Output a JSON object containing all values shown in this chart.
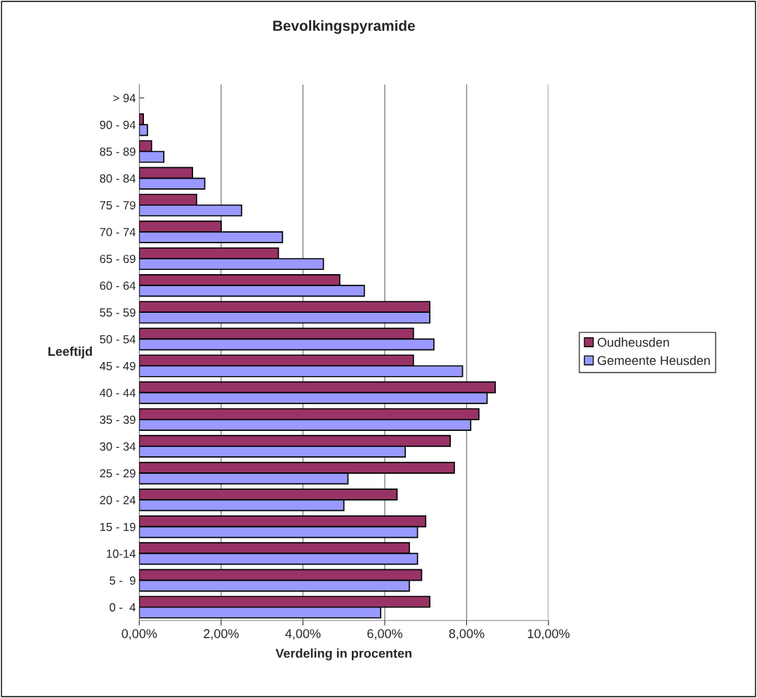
{
  "chart_data": {
    "type": "bar",
    "orientation": "horizontal",
    "title": "Bevolkingspyramide",
    "xlabel": "Verdeling in procenten",
    "ylabel": "Leeftijd",
    "categories": [
      "> 94",
      "90 - 94",
      "85 - 89",
      "80 - 84",
      "75 - 79",
      "70 - 74",
      "65 - 69",
      "60 - 64",
      "55 - 59",
      "50 - 54",
      "45 - 49",
      "40 - 44",
      "35 - 39",
      "30 - 34",
      "25 - 29",
      "20 - 24",
      "15 - 19",
      "10-14",
      "5 -  9",
      "0 -  4"
    ],
    "series": [
      {
        "name": "Oudheusden",
        "color": "#993366",
        "values": [
          0,
          0.1,
          0.3,
          1.3,
          1.4,
          2.0,
          3.4,
          4.9,
          7.1,
          6.7,
          6.7,
          8.7,
          8.3,
          7.6,
          7.7,
          6.3,
          7.0,
          6.6,
          6.9,
          7.1
        ]
      },
      {
        "name": "Gemeente Heusden",
        "color": "#9999ff",
        "values": [
          0,
          0.2,
          0.6,
          1.6,
          2.5,
          3.5,
          4.5,
          5.5,
          7.1,
          7.2,
          7.9,
          8.5,
          8.1,
          6.5,
          5.1,
          5.0,
          6.8,
          6.8,
          6.6,
          5.9
        ]
      }
    ],
    "xlim": [
      0,
      10
    ],
    "xticks": [
      {
        "value": 0,
        "label": "0,00%"
      },
      {
        "value": 2,
        "label": "2,00%"
      },
      {
        "value": 4,
        "label": "4,00%"
      },
      {
        "value": 6,
        "label": "6,00%"
      },
      {
        "value": 8,
        "label": "8,00%"
      },
      {
        "value": 10,
        "label": "10,00%"
      }
    ],
    "grid": "x",
    "legend": "right"
  }
}
